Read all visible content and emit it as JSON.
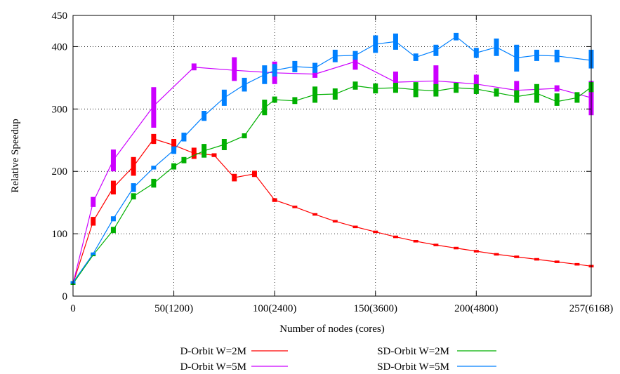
{
  "chart_data": {
    "type": "line",
    "title": "",
    "xlabel": "Number of nodes (cores)",
    "ylabel": "Relative Speedup",
    "xlim": [
      0,
      257
    ],
    "ylim": [
      0,
      450
    ],
    "grid": true,
    "legend_placement": "bottom",
    "x_ticks": [
      {
        "value": 0,
        "label": "0"
      },
      {
        "value": 50,
        "label": "50(1200)"
      },
      {
        "value": 100,
        "label": "100(2400)"
      },
      {
        "value": 150,
        "label": "150(3600)"
      },
      {
        "value": 200,
        "label": "200(4800)"
      },
      {
        "value": 257,
        "label": "257(6168)"
      }
    ],
    "y_ticks": [
      {
        "value": 0,
        "label": "0"
      },
      {
        "value": 100,
        "label": "100"
      },
      {
        "value": 200,
        "label": "200"
      },
      {
        "value": 300,
        "label": "300"
      },
      {
        "value": 400,
        "label": "400"
      },
      {
        "value": 450,
        "label": "450"
      }
    ],
    "series": [
      {
        "name": "D-Orbit W=2M",
        "color": "#ff0000",
        "points": [
          {
            "x": 0,
            "y": 20,
            "lo": 18,
            "hi": 22
          },
          {
            "x": 10,
            "y": 120,
            "lo": 113,
            "hi": 127
          },
          {
            "x": 20,
            "y": 174,
            "lo": 163,
            "hi": 185
          },
          {
            "x": 30,
            "y": 208,
            "lo": 193,
            "hi": 223
          },
          {
            "x": 40,
            "y": 252,
            "lo": 244,
            "hi": 260
          },
          {
            "x": 50,
            "y": 242,
            "lo": 232,
            "hi": 252
          },
          {
            "x": 60,
            "y": 229,
            "lo": 220,
            "hi": 238
          },
          {
            "x": 70,
            "y": 226,
            "lo": 223,
            "hi": 229
          },
          {
            "x": 80,
            "y": 190,
            "lo": 184,
            "hi": 196
          },
          {
            "x": 90,
            "y": 196,
            "lo": 191,
            "hi": 201
          },
          {
            "x": 100,
            "y": 154,
            "lo": 151,
            "hi": 157
          },
          {
            "x": 110,
            "y": 143,
            "lo": 141,
            "hi": 145
          },
          {
            "x": 120,
            "y": 131,
            "lo": 129,
            "hi": 133
          },
          {
            "x": 130,
            "y": 120,
            "lo": 118,
            "hi": 122
          },
          {
            "x": 140,
            "y": 111,
            "lo": 109,
            "hi": 113
          },
          {
            "x": 150,
            "y": 103,
            "lo": 101,
            "hi": 105
          },
          {
            "x": 160,
            "y": 95,
            "lo": 93,
            "hi": 97
          },
          {
            "x": 170,
            "y": 88,
            "lo": 86,
            "hi": 90
          },
          {
            "x": 180,
            "y": 82,
            "lo": 80,
            "hi": 84
          },
          {
            "x": 190,
            "y": 77,
            "lo": 75,
            "hi": 79
          },
          {
            "x": 200,
            "y": 72,
            "lo": 70,
            "hi": 74
          },
          {
            "x": 210,
            "y": 67,
            "lo": 65,
            "hi": 69
          },
          {
            "x": 220,
            "y": 63,
            "lo": 61,
            "hi": 65
          },
          {
            "x": 230,
            "y": 59,
            "lo": 57,
            "hi": 61
          },
          {
            "x": 240,
            "y": 55,
            "lo": 53,
            "hi": 57
          },
          {
            "x": 250,
            "y": 51,
            "lo": 49,
            "hi": 53
          },
          {
            "x": 257,
            "y": 48,
            "lo": 46,
            "hi": 50
          }
        ]
      },
      {
        "name": "D-Orbit W=5M",
        "color": "#cc00ff",
        "points": [
          {
            "x": 0,
            "y": 20,
            "lo": 18,
            "hi": 22
          },
          {
            "x": 10,
            "y": 151,
            "lo": 143,
            "hi": 159
          },
          {
            "x": 20,
            "y": 218,
            "lo": 200,
            "hi": 235
          },
          {
            "x": 40,
            "y": 305,
            "lo": 270,
            "hi": 335
          },
          {
            "x": 60,
            "y": 367,
            "lo": 362,
            "hi": 373
          },
          {
            "x": 80,
            "y": 362,
            "lo": 345,
            "hi": 383
          },
          {
            "x": 100,
            "y": 358,
            "lo": 340,
            "hi": 376
          },
          {
            "x": 120,
            "y": 356,
            "lo": 350,
            "hi": 362
          },
          {
            "x": 140,
            "y": 376,
            "lo": 363,
            "hi": 390
          },
          {
            "x": 160,
            "y": 343,
            "lo": 330,
            "hi": 360
          },
          {
            "x": 180,
            "y": 345,
            "lo": 325,
            "hi": 370
          },
          {
            "x": 200,
            "y": 340,
            "lo": 325,
            "hi": 355
          },
          {
            "x": 220,
            "y": 330,
            "lo": 320,
            "hi": 345
          },
          {
            "x": 240,
            "y": 333,
            "lo": 328,
            "hi": 338
          },
          {
            "x": 257,
            "y": 318,
            "lo": 290,
            "hi": 345
          }
        ]
      },
      {
        "name": "SD-Orbit W=2M",
        "color": "#00b000",
        "points": [
          {
            "x": 0,
            "y": 20,
            "lo": 18,
            "hi": 22
          },
          {
            "x": 10,
            "y": 66,
            "lo": 64,
            "hi": 68
          },
          {
            "x": 20,
            "y": 106,
            "lo": 101,
            "hi": 111
          },
          {
            "x": 30,
            "y": 160,
            "lo": 155,
            "hi": 165
          },
          {
            "x": 40,
            "y": 181,
            "lo": 174,
            "hi": 188
          },
          {
            "x": 50,
            "y": 208,
            "lo": 203,
            "hi": 213
          },
          {
            "x": 55,
            "y": 218,
            "lo": 213,
            "hi": 223
          },
          {
            "x": 65,
            "y": 233,
            "lo": 222,
            "hi": 244
          },
          {
            "x": 75,
            "y": 243,
            "lo": 234,
            "hi": 252
          },
          {
            "x": 85,
            "y": 257,
            "lo": 253,
            "hi": 261
          },
          {
            "x": 95,
            "y": 302,
            "lo": 290,
            "hi": 315
          },
          {
            "x": 100,
            "y": 315,
            "lo": 310,
            "hi": 320
          },
          {
            "x": 110,
            "y": 313,
            "lo": 308,
            "hi": 319
          },
          {
            "x": 120,
            "y": 323,
            "lo": 310,
            "hi": 336
          },
          {
            "x": 130,
            "y": 324,
            "lo": 315,
            "hi": 333
          },
          {
            "x": 140,
            "y": 337,
            "lo": 331,
            "hi": 344
          },
          {
            "x": 150,
            "y": 333,
            "lo": 325,
            "hi": 341
          },
          {
            "x": 160,
            "y": 334,
            "lo": 326,
            "hi": 342
          },
          {
            "x": 170,
            "y": 331,
            "lo": 319,
            "hi": 343
          },
          {
            "x": 180,
            "y": 329,
            "lo": 320,
            "hi": 340
          },
          {
            "x": 190,
            "y": 334,
            "lo": 326,
            "hi": 342
          },
          {
            "x": 200,
            "y": 332,
            "lo": 324,
            "hi": 340
          },
          {
            "x": 210,
            "y": 326,
            "lo": 320,
            "hi": 333
          },
          {
            "x": 220,
            "y": 320,
            "lo": 310,
            "hi": 330
          },
          {
            "x": 230,
            "y": 325,
            "lo": 310,
            "hi": 340
          },
          {
            "x": 240,
            "y": 312,
            "lo": 305,
            "hi": 325
          },
          {
            "x": 250,
            "y": 318,
            "lo": 310,
            "hi": 327
          },
          {
            "x": 257,
            "y": 335,
            "lo": 327,
            "hi": 343
          }
        ]
      },
      {
        "name": "SD-Orbit W=5M",
        "color": "#0080ff",
        "points": [
          {
            "x": 0,
            "y": 22,
            "lo": 20,
            "hi": 24
          },
          {
            "x": 10,
            "y": 68,
            "lo": 66,
            "hi": 70
          },
          {
            "x": 20,
            "y": 124,
            "lo": 120,
            "hi": 128
          },
          {
            "x": 30,
            "y": 174,
            "lo": 167,
            "hi": 181
          },
          {
            "x": 40,
            "y": 206,
            "lo": 203,
            "hi": 209
          },
          {
            "x": 50,
            "y": 234,
            "lo": 228,
            "hi": 240
          },
          {
            "x": 55,
            "y": 255,
            "lo": 248,
            "hi": 262
          },
          {
            "x": 65,
            "y": 289,
            "lo": 281,
            "hi": 297
          },
          {
            "x": 75,
            "y": 318,
            "lo": 305,
            "hi": 331
          },
          {
            "x": 85,
            "y": 339,
            "lo": 328,
            "hi": 350
          },
          {
            "x": 95,
            "y": 355,
            "lo": 340,
            "hi": 370
          },
          {
            "x": 100,
            "y": 362,
            "lo": 352,
            "hi": 372
          },
          {
            "x": 110,
            "y": 368,
            "lo": 359,
            "hi": 377
          },
          {
            "x": 120,
            "y": 366,
            "lo": 358,
            "hi": 374
          },
          {
            "x": 130,
            "y": 385,
            "lo": 375,
            "hi": 395
          },
          {
            "x": 140,
            "y": 386,
            "lo": 379,
            "hi": 393
          },
          {
            "x": 150,
            "y": 404,
            "lo": 390,
            "hi": 418
          },
          {
            "x": 160,
            "y": 408,
            "lo": 395,
            "hi": 421
          },
          {
            "x": 170,
            "y": 383,
            "lo": 377,
            "hi": 389
          },
          {
            "x": 180,
            "y": 394,
            "lo": 385,
            "hi": 403
          },
          {
            "x": 190,
            "y": 416,
            "lo": 410,
            "hi": 422
          },
          {
            "x": 200,
            "y": 390,
            "lo": 382,
            "hi": 398
          },
          {
            "x": 210,
            "y": 399,
            "lo": 385,
            "hi": 413
          },
          {
            "x": 220,
            "y": 382,
            "lo": 360,
            "hi": 403
          },
          {
            "x": 230,
            "y": 386,
            "lo": 377,
            "hi": 395
          },
          {
            "x": 240,
            "y": 385,
            "lo": 375,
            "hi": 395
          },
          {
            "x": 257,
            "y": 378,
            "lo": 365,
            "hi": 395
          }
        ]
      }
    ]
  }
}
